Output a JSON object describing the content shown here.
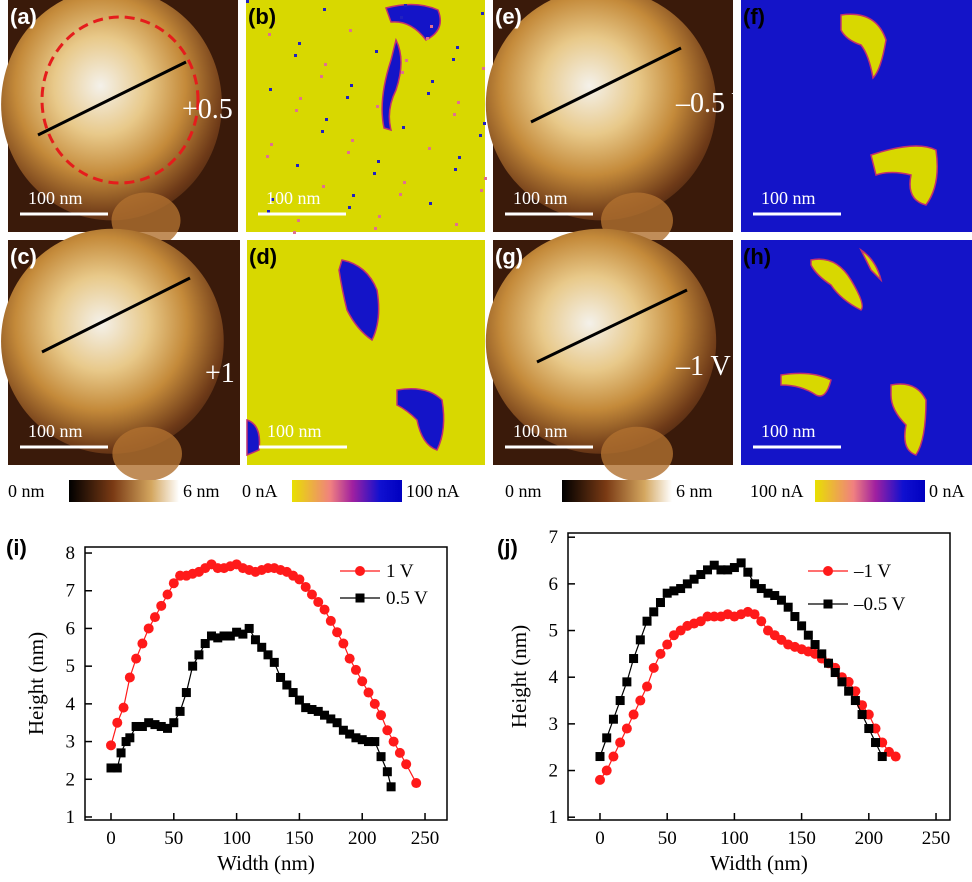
{
  "panels": [
    {
      "label": "(a)",
      "scale": "100 nm",
      "voltage": "+0.5 V"
    },
    {
      "label": "(b)",
      "scale": "100 nm"
    },
    {
      "label": "(c)",
      "scale": "100 nm",
      "voltage": "+1 V"
    },
    {
      "label": "(d)",
      "scale": "100 nm"
    },
    {
      "label": "(e)",
      "scale": "100 nm",
      "voltage": "–0.5 V"
    },
    {
      "label": "(f)",
      "scale": "100 nm"
    },
    {
      "label": "(g)",
      "scale": "100 nm",
      "voltage": "–1 V"
    },
    {
      "label": "(h)",
      "scale": "100 nm"
    }
  ],
  "colorbars": [
    {
      "min": "0 nm",
      "max": "6 nm"
    },
    {
      "min": "0 nA",
      "max": "100 nA"
    },
    {
      "min": "0 nm",
      "max": "6 nm"
    },
    {
      "min": "100 nA",
      "max": "0 nA"
    }
  ],
  "chart_data": [
    {
      "type": "line",
      "panel_label": "(i)",
      "x_label": "Width (nm)",
      "y_label": "Height (nm)",
      "xlim": [
        -20.7,
        267.5
      ],
      "ylim": [
        0.92,
        8.16
      ],
      "xticks": [
        0,
        50,
        100,
        150,
        200,
        250
      ],
      "yticks": [
        1,
        2,
        3,
        4,
        5,
        6,
        7,
        8
      ],
      "series": [
        {
          "name": "1 V",
          "color": "#ff1a1a",
          "marker": "circle",
          "x": [
            0,
            5,
            10,
            15,
            20,
            25,
            30,
            35,
            40,
            45,
            50,
            55,
            60,
            65,
            70,
            75,
            80,
            85,
            90,
            95,
            100,
            105,
            110,
            115,
            120,
            125,
            130,
            135,
            140,
            145,
            150,
            155,
            160,
            165,
            170,
            175,
            180,
            185,
            190,
            195,
            200,
            205,
            210,
            215,
            220,
            225,
            230,
            235,
            243
          ],
          "values": [
            2.9,
            3.5,
            3.9,
            4.7,
            5.2,
            5.6,
            6.0,
            6.3,
            6.6,
            6.9,
            7.2,
            7.4,
            7.4,
            7.45,
            7.5,
            7.6,
            7.7,
            7.6,
            7.6,
            7.65,
            7.7,
            7.6,
            7.55,
            7.5,
            7.55,
            7.6,
            7.6,
            7.55,
            7.5,
            7.4,
            7.3,
            7.1,
            6.9,
            6.7,
            6.5,
            6.2,
            5.9,
            5.6,
            5.2,
            4.9,
            4.6,
            4.3,
            4.0,
            3.7,
            3.3,
            3.0,
            2.7,
            2.4,
            1.9
          ]
        },
        {
          "name": "0.5 V",
          "color": "#000000",
          "marker": "square",
          "x": [
            0,
            5,
            8,
            12,
            15,
            20,
            25,
            30,
            35,
            40,
            45,
            50,
            55,
            60,
            65,
            70,
            75,
            80,
            85,
            90,
            95,
            100,
            105,
            110,
            115,
            120,
            125,
            130,
            135,
            140,
            145,
            150,
            155,
            160,
            165,
            170,
            175,
            180,
            185,
            190,
            195,
            200,
            205,
            210,
            215,
            220,
            223
          ],
          "values": [
            2.3,
            2.3,
            2.7,
            3.0,
            3.1,
            3.4,
            3.4,
            3.5,
            3.45,
            3.4,
            3.35,
            3.5,
            3.8,
            4.3,
            5.0,
            5.3,
            5.6,
            5.8,
            5.75,
            5.8,
            5.8,
            5.9,
            5.85,
            6.0,
            5.7,
            5.5,
            5.3,
            5.1,
            4.7,
            4.5,
            4.3,
            4.1,
            3.9,
            3.85,
            3.8,
            3.7,
            3.6,
            3.5,
            3.3,
            3.2,
            3.1,
            3.05,
            3.0,
            3.0,
            2.6,
            2.2,
            1.8
          ]
        }
      ]
    },
    {
      "type": "line",
      "panel_label": "(j)",
      "x_label": "Width (nm)",
      "y_label": "Height (nm)",
      "xlim": [
        -23.8,
        260.4
      ],
      "ylim": [
        0.94,
        7.09
      ],
      "xticks": [
        0,
        50,
        100,
        150,
        200,
        250
      ],
      "yticks": [
        1,
        2,
        3,
        4,
        5,
        6,
        7
      ],
      "series": [
        {
          "name": "–1 V",
          "color": "#ff1a1a",
          "marker": "circle",
          "x": [
            0,
            5,
            10,
            15,
            20,
            25,
            30,
            35,
            40,
            45,
            50,
            55,
            60,
            65,
            70,
            75,
            80,
            85,
            90,
            95,
            100,
            105,
            110,
            115,
            120,
            125,
            130,
            135,
            140,
            145,
            150,
            155,
            160,
            165,
            170,
            175,
            180,
            185,
            190,
            195,
            200,
            205,
            210,
            215,
            220
          ],
          "values": [
            1.8,
            2.0,
            2.3,
            2.6,
            2.9,
            3.2,
            3.5,
            3.8,
            4.2,
            4.5,
            4.7,
            4.9,
            5.0,
            5.1,
            5.15,
            5.2,
            5.3,
            5.3,
            5.3,
            5.35,
            5.3,
            5.35,
            5.4,
            5.35,
            5.2,
            5.0,
            4.9,
            4.8,
            4.7,
            4.65,
            4.6,
            4.55,
            4.5,
            4.4,
            4.3,
            4.2,
            4.0,
            3.9,
            3.7,
            3.4,
            3.2,
            2.9,
            2.6,
            2.4,
            2.3
          ]
        },
        {
          "name": "–0.5 V",
          "color": "#000000",
          "marker": "square",
          "x": [
            0,
            5,
            10,
            15,
            20,
            25,
            30,
            35,
            40,
            45,
            50,
            55,
            60,
            65,
            70,
            75,
            80,
            85,
            90,
            95,
            100,
            105,
            110,
            115,
            120,
            125,
            130,
            135,
            140,
            145,
            150,
            155,
            160,
            165,
            170,
            175,
            180,
            185,
            190,
            195,
            200,
            205,
            210
          ],
          "values": [
            2.3,
            2.7,
            3.1,
            3.5,
            3.9,
            4.4,
            4.8,
            5.2,
            5.4,
            5.6,
            5.8,
            5.85,
            5.9,
            6.0,
            6.1,
            6.2,
            6.3,
            6.4,
            6.3,
            6.3,
            6.35,
            6.45,
            6.25,
            6.0,
            5.9,
            5.8,
            5.75,
            5.65,
            5.5,
            5.3,
            5.1,
            4.9,
            4.7,
            4.5,
            4.3,
            4.1,
            3.9,
            3.7,
            3.5,
            3.2,
            2.9,
            2.6,
            2.3
          ]
        }
      ]
    }
  ]
}
